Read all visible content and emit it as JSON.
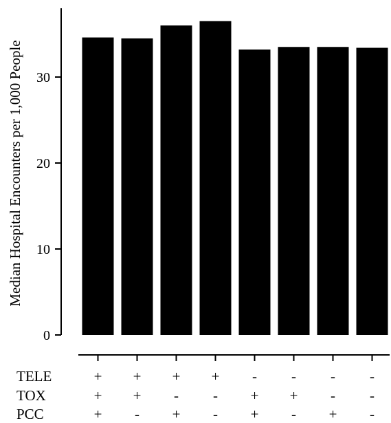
{
  "chart_data": {
    "type": "bar",
    "title": "",
    "ylabel": "Median Hospital Encounters per 1,000 People",
    "xlabel": "",
    "ylim": [
      0,
      38
    ],
    "yticks": [
      0,
      10,
      20,
      30
    ],
    "ytick_labels": [
      "0",
      "10",
      "20",
      "30"
    ],
    "grid": false,
    "bar_color": "#000000",
    "categories": [
      "+ + +",
      "+ + -",
      "+ - +",
      "+ - -",
      "- + +",
      "- + -",
      "- - +",
      "- - -"
    ],
    "values": [
      34.6,
      34.5,
      36.0,
      36.5,
      33.2,
      33.5,
      33.5,
      33.4
    ],
    "indicator_rows": [
      {
        "label": "TELE",
        "signs": [
          "+",
          "+",
          "+",
          "+",
          "-",
          "-",
          "-",
          "-"
        ]
      },
      {
        "label": "TOX",
        "signs": [
          "+",
          "+",
          "-",
          "-",
          "+",
          "+",
          "-",
          "-"
        ]
      },
      {
        "label": "PCC",
        "signs": [
          "+",
          "-",
          "+",
          "-",
          "+",
          "-",
          "+",
          "-"
        ]
      }
    ]
  }
}
